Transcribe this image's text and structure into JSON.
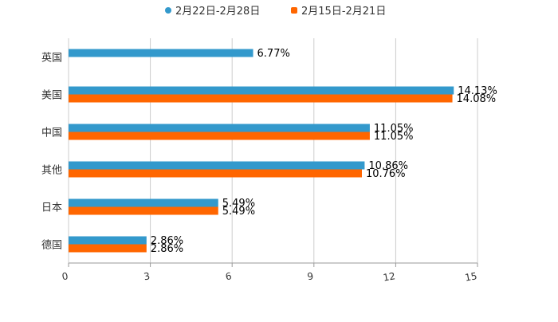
{
  "colors": {
    "series_1": "#3399cc",
    "series_2": "#ff6600",
    "grid": "#cccccc",
    "axis": "#999999",
    "text": "#333333"
  },
  "chart_data": {
    "type": "bar",
    "orientation": "horizontal",
    "title": "",
    "xlabel": "",
    "ylabel": "",
    "xlim": [
      0,
      15
    ],
    "xticks": [
      0,
      3,
      6,
      9,
      12,
      15
    ],
    "grid": true,
    "legend_position": "top-center",
    "categories": [
      "英国",
      "美国",
      "中国",
      "其他",
      "日本",
      "德国"
    ],
    "series": [
      {
        "name": "2月22日-2月28日",
        "values": [
          6.77,
          14.13,
          11.05,
          10.86,
          5.49,
          2.86
        ],
        "labels": [
          "6.77%",
          "14.13%",
          "11.05%",
          "10.86%",
          "5.49%",
          "2.86%"
        ]
      },
      {
        "name": "2月15日-2月21日",
        "values": [
          null,
          14.08,
          11.05,
          10.76,
          5.49,
          2.86
        ],
        "labels": [
          null,
          "14.08%",
          "11.05%",
          "10.76%",
          "5.49%",
          "2.86%"
        ]
      }
    ]
  }
}
